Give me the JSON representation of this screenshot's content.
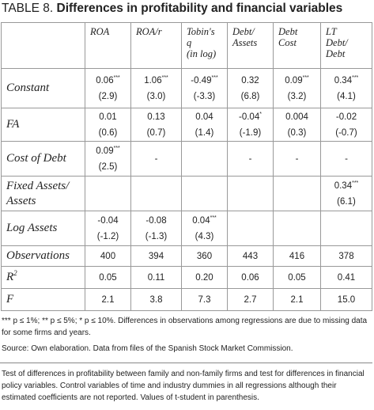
{
  "header": {
    "label": "TABLE 8.",
    "title": "Differences in profitability and financial variables"
  },
  "table": {
    "columns": [
      {
        "lines": [
          "ROA"
        ]
      },
      {
        "lines": [
          "ROA/r"
        ]
      },
      {
        "lines": [
          "Tobin's",
          "q",
          "(in log)"
        ]
      },
      {
        "lines": [
          "Debt/",
          "Assets"
        ]
      },
      {
        "lines": [
          "Debt",
          "Cost"
        ]
      },
      {
        "lines": [
          "LT",
          "Debt/",
          "Debt"
        ]
      }
    ],
    "rows": [
      {
        "label": "Constant",
        "cells": [
          {
            "value": "0.06",
            "stars": "***",
            "t": "(2.9)"
          },
          {
            "value": "1.06",
            "stars": "***",
            "t": "(3.0)"
          },
          {
            "value": "-0.49",
            "stars": "***",
            "t": "(-3.3)"
          },
          {
            "value": "0.32",
            "t": "(6.8)"
          },
          {
            "value": "0.09",
            "stars": "***",
            "t": "(3.2)"
          },
          {
            "value": "0.34",
            "stars": "***",
            "t": "(4.1)"
          }
        ]
      },
      {
        "label": "FA",
        "cells": [
          {
            "value": "0.01",
            "t": "(0.6)"
          },
          {
            "value": "0.13",
            "t": "(0.7)"
          },
          {
            "value": "0.04",
            "t": "(1.4)"
          },
          {
            "value": "-0.04",
            "stars": "*",
            "t": "(-1.9)"
          },
          {
            "value": "0.004",
            "t": "(0.3)"
          },
          {
            "value": "-0.02",
            "t": "(-0.7)"
          }
        ]
      },
      {
        "label": "Cost of Debt",
        "cells": [
          {
            "value": "0.09",
            "stars": "***",
            "t": "(2.5)"
          },
          {
            "value": "-"
          },
          null,
          {
            "value": "-"
          },
          {
            "value": "-"
          },
          {
            "value": "-"
          }
        ]
      },
      {
        "label": "Fixed Assets/ Assets",
        "cells": [
          null,
          null,
          null,
          null,
          null,
          {
            "value": "0.34",
            "stars": "***",
            "t": "(6.1)"
          }
        ]
      },
      {
        "label": "Log Assets",
        "cells": [
          {
            "value": "-0.04",
            "t": "(-1.2)"
          },
          {
            "value": "-0.08",
            "t": "(-1.3)"
          },
          {
            "value": "0.04",
            "stars": "***",
            "t": "(4.3)"
          },
          null,
          null,
          null
        ]
      },
      {
        "label": "Observations",
        "cells": [
          {
            "value": "400"
          },
          {
            "value": "394"
          },
          {
            "value": "360"
          },
          {
            "value": "443"
          },
          {
            "value": "416"
          },
          {
            "value": "378"
          }
        ]
      },
      {
        "label": {
          "text": "R",
          "sup": "2"
        },
        "cells": [
          {
            "value": "0.05"
          },
          {
            "value": "0.11"
          },
          {
            "value": "0.20"
          },
          {
            "value": "0.06"
          },
          {
            "value": "0.05"
          },
          {
            "value": "0.41"
          }
        ]
      },
      {
        "label": "F",
        "cells": [
          {
            "value": "2.1"
          },
          {
            "value": "3.8"
          },
          {
            "value": "7.3"
          },
          {
            "value": "2.7"
          },
          {
            "value": "2.1"
          },
          {
            "value": "15.0"
          }
        ]
      }
    ]
  },
  "notes": {
    "significance": "*** p ≤ 1%; ** p ≤ 5%;  * p ≤ 10%. Differences in observations among regressions are due to missing data for some firms and years.",
    "source": "Source: Own elaboration. Data from files of the Spanish Stock Market Commission.",
    "caption": "Test of differences in profitability between family and non-family firms and test for differences in financial policy variables. Control variables of time and industry dummies in all regressions although their estimated coefficients are not reported. Values of t-student in parenthesis."
  }
}
